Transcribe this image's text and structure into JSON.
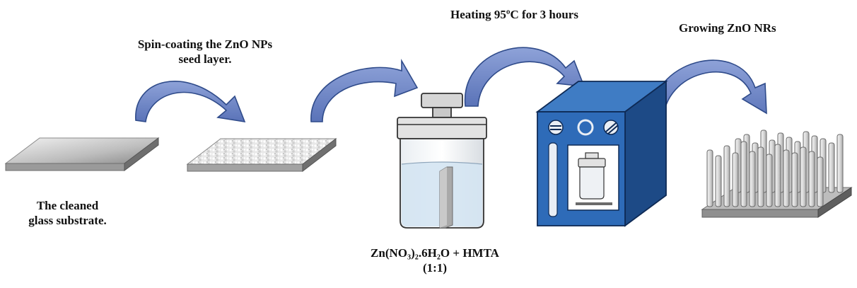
{
  "labels": {
    "step1_line1": "The cleaned",
    "step1_line2": "glass substrate.",
    "step2_line1": "Spin-coating the ZnO NPs",
    "step2_line2": "seed layer.",
    "step3_line1": "Zn(NO₃)₂.6H₂O + HMTA",
    "step3_line2": "(1:1)",
    "step4": "Heating 95ºC for 3 hours",
    "step5": "Growing ZnO NRs"
  },
  "icons": {
    "arrow": "curved-arrow-icon",
    "substrate": "glass-substrate-icon",
    "seeded_substrate": "seeded-substrate-icon",
    "jar": "autoclave-jar-icon",
    "oven": "oven-icon",
    "nanorods": "nanorods-icon"
  },
  "colors": {
    "arrow_fill": "#6f86c4",
    "arrow_stroke": "#2f4b8a",
    "oven_front": "#2e6bb8",
    "oven_side": "#1d4a86",
    "oven_top": "#3f7cc4",
    "solution": "#d4e4f2"
  }
}
